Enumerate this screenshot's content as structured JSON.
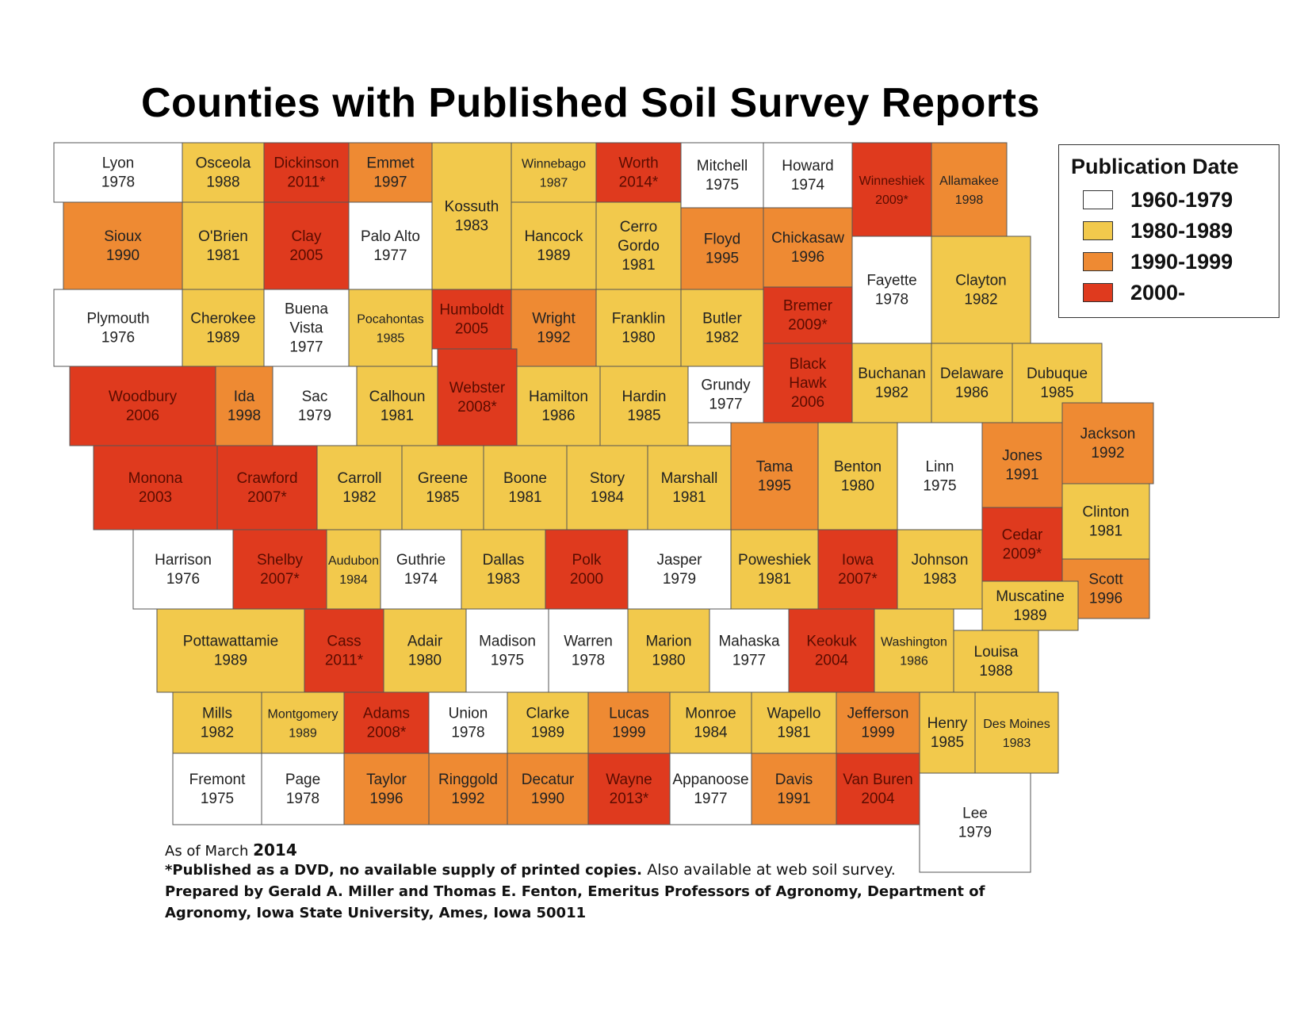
{
  "title": "Counties with Published Soil Survey Reports",
  "legend": {
    "title": "Publication Date",
    "items": [
      {
        "label": "1960-1979",
        "color": "#ffffff"
      },
      {
        "label": "1980-1989",
        "color": "#f2c94c"
      },
      {
        "label": "1990-1999",
        "color": "#ee8a33"
      },
      {
        "label": "2000-",
        "color": "#df3a1e"
      }
    ]
  },
  "footer": {
    "as_of_prefix": "As of March",
    "as_of_year": "2014",
    "note": "*Published as a DVD, no available supply of printed copies.",
    "note_extra": "Also available at web soil survey.",
    "prepared_1": "Prepared by Gerald A. Miller and Thomas E. Fenton, Emeritus Professors of Agronomy, Department of",
    "prepared_2": "Agronomy, Iowa State University, Ames, Iowa 50011"
  },
  "counties": [
    {
      "name": "Lyon",
      "year": "1978"
    },
    {
      "name": "Osceola",
      "year": "1988"
    },
    {
      "name": "Dickinson",
      "year": "2011*"
    },
    {
      "name": "Emmet",
      "year": "1997"
    },
    {
      "name": "Kossuth",
      "year": "1983"
    },
    {
      "name": "Winnebago",
      "year": "1987"
    },
    {
      "name": "Worth",
      "year": "2014*"
    },
    {
      "name": "Mitchell",
      "year": "1975"
    },
    {
      "name": "Howard",
      "year": "1974"
    },
    {
      "name": "Winneshiek",
      "year": "2009*"
    },
    {
      "name": "Allamakee",
      "year": "1998"
    },
    {
      "name": "Sioux",
      "year": "1990"
    },
    {
      "name": "O'Brien",
      "year": "1981"
    },
    {
      "name": "Clay",
      "year": "2005"
    },
    {
      "name": "Palo Alto",
      "year": "1977"
    },
    {
      "name": "Hancock",
      "year": "1989"
    },
    {
      "name": "Cerro Gordo",
      "year": "1981"
    },
    {
      "name": "Floyd",
      "year": "1995"
    },
    {
      "name": "Chickasaw",
      "year": "1996"
    },
    {
      "name": "Fayette",
      "year": "1978"
    },
    {
      "name": "Clayton",
      "year": "1982"
    },
    {
      "name": "Plymouth",
      "year": "1976"
    },
    {
      "name": "Cherokee",
      "year": "1989"
    },
    {
      "name": "Buena Vista",
      "year": "1977"
    },
    {
      "name": "Pocahontas",
      "year": "1985"
    },
    {
      "name": "Humboldt",
      "year": "2005"
    },
    {
      "name": "Wright",
      "year": "1992"
    },
    {
      "name": "Franklin",
      "year": "1980"
    },
    {
      "name": "Butler",
      "year": "1982"
    },
    {
      "name": "Bremer",
      "year": "2009*"
    },
    {
      "name": "Black Hawk",
      "year": "2006"
    },
    {
      "name": "Buchanan",
      "year": "1982"
    },
    {
      "name": "Delaware",
      "year": "1986"
    },
    {
      "name": "Dubuque",
      "year": "1985"
    },
    {
      "name": "Woodbury",
      "year": "2006"
    },
    {
      "name": "Ida",
      "year": "1998"
    },
    {
      "name": "Sac",
      "year": "1979"
    },
    {
      "name": "Calhoun",
      "year": "1981"
    },
    {
      "name": "Webster",
      "year": "2008*"
    },
    {
      "name": "Hamilton",
      "year": "1986"
    },
    {
      "name": "Hardin",
      "year": "1985"
    },
    {
      "name": "Grundy",
      "year": "1977"
    },
    {
      "name": "Monona",
      "year": "2003"
    },
    {
      "name": "Crawford",
      "year": "2007*"
    },
    {
      "name": "Carroll",
      "year": "1982"
    },
    {
      "name": "Greene",
      "year": "1985"
    },
    {
      "name": "Boone",
      "year": "1981"
    },
    {
      "name": "Story",
      "year": "1984"
    },
    {
      "name": "Marshall",
      "year": "1981"
    },
    {
      "name": "Tama",
      "year": "1995"
    },
    {
      "name": "Benton",
      "year": "1980"
    },
    {
      "name": "Linn",
      "year": "1975"
    },
    {
      "name": "Jones",
      "year": "1991"
    },
    {
      "name": "Jackson",
      "year": "1992"
    },
    {
      "name": "Clinton",
      "year": "1981"
    },
    {
      "name": "Harrison",
      "year": "1976"
    },
    {
      "name": "Shelby",
      "year": "2007*"
    },
    {
      "name": "Audubon",
      "year": "1984"
    },
    {
      "name": "Guthrie",
      "year": "1974"
    },
    {
      "name": "Dallas",
      "year": "1983"
    },
    {
      "name": "Polk",
      "year": "2000"
    },
    {
      "name": "Jasper",
      "year": "1979"
    },
    {
      "name": "Poweshiek",
      "year": "1981"
    },
    {
      "name": "Iowa",
      "year": "2007*"
    },
    {
      "name": "Johnson",
      "year": "1983"
    },
    {
      "name": "Cedar",
      "year": "2009*"
    },
    {
      "name": "Scott",
      "year": "1996"
    },
    {
      "name": "Muscatine",
      "year": "1989"
    },
    {
      "name": "Pottawattamie",
      "year": "1989"
    },
    {
      "name": "Cass",
      "year": "2011*"
    },
    {
      "name": "Adair",
      "year": "1980"
    },
    {
      "name": "Madison",
      "year": "1975"
    },
    {
      "name": "Warren",
      "year": "1978"
    },
    {
      "name": "Marion",
      "year": "1980"
    },
    {
      "name": "Mahaska",
      "year": "1977"
    },
    {
      "name": "Keokuk",
      "year": "2004"
    },
    {
      "name": "Washington",
      "year": "1986"
    },
    {
      "name": "Louisa",
      "year": "1988"
    },
    {
      "name": "Mills",
      "year": "1982"
    },
    {
      "name": "Montgomery",
      "year": "1989"
    },
    {
      "name": "Adams",
      "year": "2008*"
    },
    {
      "name": "Union",
      "year": "1978"
    },
    {
      "name": "Clarke",
      "year": "1989"
    },
    {
      "name": "Lucas",
      "year": "1999"
    },
    {
      "name": "Monroe",
      "year": "1984"
    },
    {
      "name": "Wapello",
      "year": "1981"
    },
    {
      "name": "Jefferson",
      "year": "1999"
    },
    {
      "name": "Henry",
      "year": "1985"
    },
    {
      "name": "Des Moines",
      "year": "1983"
    },
    {
      "name": "Fremont",
      "year": "1975"
    },
    {
      "name": "Page",
      "year": "1978"
    },
    {
      "name": "Taylor",
      "year": "1996"
    },
    {
      "name": "Ringgold",
      "year": "1992"
    },
    {
      "name": "Decatur",
      "year": "1990"
    },
    {
      "name": "Wayne",
      "year": "2013*"
    },
    {
      "name": "Appanoose",
      "year": "1977"
    },
    {
      "name": "Davis",
      "year": "1991"
    },
    {
      "name": "Van Buren",
      "year": "2004"
    },
    {
      "name": "Lee",
      "year": "1979"
    }
  ]
}
